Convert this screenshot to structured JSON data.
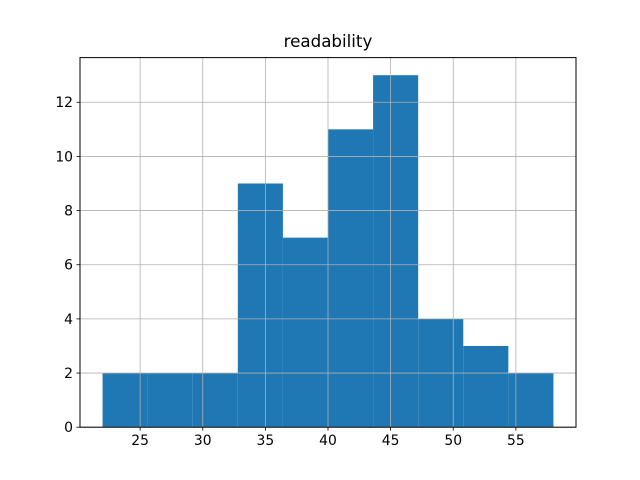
{
  "chart_data": {
    "type": "bar",
    "subtype": "histogram",
    "title": "readability",
    "xlabel": "",
    "ylabel": "",
    "bin_edges": [
      22,
      25.6,
      29.2,
      32.8,
      36.4,
      40,
      43.6,
      47.2,
      50.8,
      54.4,
      58
    ],
    "counts": [
      2,
      2,
      2,
      9,
      7,
      11,
      13,
      4,
      3,
      2
    ],
    "xticks": [
      25,
      30,
      35,
      40,
      45,
      50,
      55
    ],
    "yticks": [
      0,
      2,
      4,
      6,
      8,
      10,
      12
    ],
    "xlim": [
      20.2,
      59.8
    ],
    "ylim": [
      0,
      13.65
    ],
    "bar_color": "#1f77b4",
    "grid_color": "#b0b0b0",
    "axis_color": "#000000",
    "grid": "on",
    "grid_above_bars": true,
    "legend": "none",
    "background_color": "#ffffff"
  }
}
